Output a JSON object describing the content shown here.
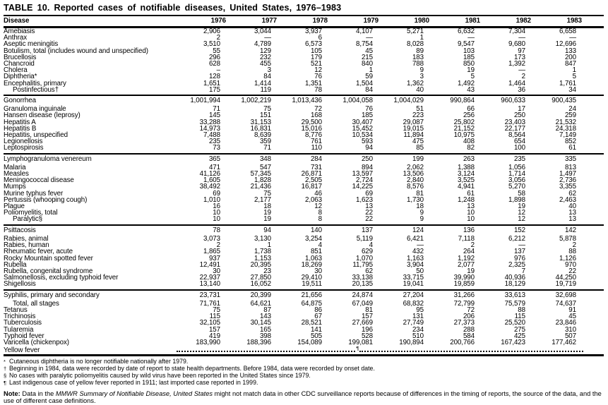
{
  "title": "TABLE 10. Reported cases of notifiable diseases, United States, 1976–1983",
  "colors": {
    "text": "#000000",
    "background": "#ffffff"
  },
  "table": {
    "columns": [
      "Disease",
      "1976",
      "1977",
      "1978",
      "1979",
      "1980",
      "1981",
      "1982",
      "1983"
    ],
    "sections": [
      {
        "rows": [
          {
            "disease": "Amebiasis",
            "values": [
              "2,906",
              "3,044",
              "3,937",
              "4,107",
              "5,271",
              "6,632",
              "7,304",
              "6,658"
            ]
          },
          {
            "disease": "Anthrax",
            "values": [
              "2",
              "—",
              "6",
              "—",
              "1",
              "—",
              "—",
              "—"
            ]
          },
          {
            "disease": "Aseptic meningitis",
            "values": [
              "3,510",
              "4,789",
              "6,573",
              "8,754",
              "8,028",
              "9,547",
              "9,680",
              "12,696"
            ]
          },
          {
            "disease": "Botulism, total (includes wound and unspecified)",
            "values": [
              "55",
              "129",
              "105",
              "45",
              "89",
              "103",
              "97",
              "133"
            ]
          },
          {
            "disease": "Brucellosis",
            "values": [
              "296",
              "232",
              "179",
              "215",
              "183",
              "185",
              "173",
              "200"
            ]
          },
          {
            "disease": "Chancroid",
            "values": [
              "628",
              "455",
              "521",
              "840",
              "788",
              "850",
              "1,392",
              "847"
            ]
          },
          {
            "disease": "Cholera",
            "values": [
              "–",
              "3",
              "12",
              "1",
              "9",
              "19",
              "—",
              "1"
            ]
          },
          {
            "disease": "Diphtheria*",
            "values": [
              "128",
              "84",
              "76",
              "59",
              "3",
              "5",
              "2",
              "5"
            ]
          },
          {
            "disease": "Encephalitis, primary",
            "values": [
              "1,651",
              "1,414",
              "1,351",
              "1,504",
              "1,362",
              "1,492",
              "1,464",
              "1,761"
            ]
          },
          {
            "disease": "Postinfectious†",
            "indent": true,
            "values": [
              "175",
              "119",
              "78",
              "84",
              "40",
              "43",
              "36",
              "34"
            ]
          }
        ]
      },
      {
        "rows": [
          {
            "disease": "Gonorrhea",
            "values": [
              "1,001,994",
              "1,002,219",
              "1,013,436",
              "1,004,058",
              "1,004,029",
              "990,864",
              "960,633",
              "900,435"
            ]
          },
          {
            "disease": "Granuloma inguinale",
            "values": [
              "71",
              "75",
              "72",
              "76",
              "51",
              "66",
              "17",
              "24"
            ]
          },
          {
            "disease": "Hansen disease (leprosy)",
            "values": [
              "145",
              "151",
              "168",
              "185",
              "223",
              "256",
              "250",
              "259"
            ]
          },
          {
            "disease": "Hepatitis A",
            "values": [
              "33,288",
              "31,153",
              "29,500",
              "30,407",
              "29,087",
              "25,802",
              "23,403",
              "21,532"
            ]
          },
          {
            "disease": "Hepatitis B",
            "values": [
              "14,973",
              "16,831",
              "15,016",
              "15,452",
              "19,015",
              "21,152",
              "22,177",
              "24,318"
            ]
          },
          {
            "disease": "Hepatitis, unspecified",
            "values": [
              "7,488",
              "8,639",
              "8,776",
              "10,534",
              "11,894",
              "10,975",
              "8,564",
              "7,149"
            ]
          },
          {
            "disease": "Legionellosis",
            "values": [
              "235",
              "359",
              "761",
              "593",
              "475",
              "408",
              "654",
              "852"
            ]
          },
          {
            "disease": "Leptospirosis",
            "values": [
              "73",
              "71",
              "110",
              "94",
              "85",
              "82",
              "100",
              "61"
            ]
          }
        ]
      },
      {
        "rows": [
          {
            "disease": "Lymphogranuloma venereum",
            "values": [
              "365",
              "348",
              "284",
              "250",
              "199",
              "263",
              "235",
              "335"
            ]
          },
          {
            "disease": "Malaria",
            "values": [
              "471",
              "547",
              "731",
              "894",
              "2,062",
              "1,388",
              "1,056",
              "813"
            ]
          },
          {
            "disease": "Measles",
            "values": [
              "41,126",
              "57,345",
              "26,871",
              "13,597",
              "13,506",
              "3,124",
              "1,714",
              "1,497"
            ]
          },
          {
            "disease": "Meningococcal disease",
            "values": [
              "1,605",
              "1,828",
              "2,505",
              "2,724",
              "2,840",
              "3,525",
              "3,056",
              "2,736"
            ]
          },
          {
            "disease": "Mumps",
            "values": [
              "38,492",
              "21,436",
              "16,817",
              "14,225",
              "8,576",
              "4,941",
              "5,270",
              "3,355"
            ]
          },
          {
            "disease": "Murine typhus fever",
            "values": [
              "69",
              "75",
              "46",
              "69",
              "81",
              "61",
              "58",
              "62"
            ]
          },
          {
            "disease": "Pertussis (whooping cough)",
            "values": [
              "1,010",
              "2,177",
              "2,063",
              "1,623",
              "1,730",
              "1,248",
              "1,898",
              "2,463"
            ]
          },
          {
            "disease": "Plague",
            "values": [
              "16",
              "18",
              "12",
              "13",
              "18",
              "13",
              "19",
              "40"
            ]
          },
          {
            "disease": "Poliomyelitis, total",
            "values": [
              "10",
              "19",
              "8",
              "22",
              "9",
              "10",
              "12",
              "13"
            ]
          },
          {
            "disease": "Paralytic§",
            "indent": true,
            "values": [
              "10",
              "19",
              "8",
              "22",
              "9",
              "10",
              "12",
              "13"
            ]
          }
        ]
      },
      {
        "rows": [
          {
            "disease": "Psittacosis",
            "values": [
              "78",
              "94",
              "140",
              "137",
              "124",
              "136",
              "152",
              "142"
            ]
          },
          {
            "disease": "Rabies, animal",
            "values": [
              "3,073",
              "3,130",
              "3,254",
              "5,119",
              "6,421",
              "7,118",
              "6,212",
              "5,878"
            ]
          },
          {
            "disease": "Rabies, human",
            "values": [
              "2",
              "1",
              "4",
              "4",
              "—",
              "2",
              "—",
              "2"
            ]
          },
          {
            "disease": "Rheumatic fever, acute",
            "values": [
              "1,865",
              "1,738",
              "851",
              "629",
              "432",
              "264",
              "137",
              "88"
            ]
          },
          {
            "disease": "Rocky Mountain spotted fever",
            "values": [
              "937",
              "1,153",
              "1,063",
              "1,070",
              "1,163",
              "1,192",
              "976",
              "1,126"
            ]
          },
          {
            "disease": "Rubella",
            "values": [
              "12,491",
              "20,395",
              "18,269",
              "11,795",
              "3,904",
              "2,077",
              "2,325",
              "970"
            ]
          },
          {
            "disease": "Rubella, congenital syndrome",
            "values": [
              "30",
              "23",
              "30",
              "62",
              "50",
              "19",
              "7",
              "22"
            ]
          },
          {
            "disease": "Salmonellosis, excluding typhoid fever",
            "values": [
              "22,937",
              "27,850",
              "29,410",
              "33,138",
              "33,715",
              "39,990",
              "40,936",
              "44,250"
            ]
          },
          {
            "disease": "Shigellosis",
            "values": [
              "13,140",
              "16,052",
              "19,511",
              "20,135",
              "19,041",
              "19,859",
              "18,129",
              "19,719"
            ]
          }
        ]
      },
      {
        "rows": [
          {
            "disease": "Syphilis, primary and secondary",
            "values": [
              "23,731",
              "20,399",
              "21,656",
              "24,874",
              "27,204",
              "31,266",
              "33,613",
              "32,698"
            ]
          },
          {
            "disease": "Total, all stages",
            "indent": true,
            "values": [
              "71,761",
              "64,621",
              "64,875",
              "67,049",
              "68,832",
              "72,799",
              "75,579",
              "74,637"
            ]
          },
          {
            "disease": "Tetanus",
            "values": [
              "75",
              "87",
              "86",
              "81",
              "95",
              "72",
              "88",
              "91"
            ]
          },
          {
            "disease": "Trichinosis",
            "values": [
              "115",
              "143",
              "67",
              "157",
              "131",
              "206",
              "115",
              "45"
            ]
          },
          {
            "disease": "Tuberculosis",
            "values": [
              "32,105",
              "30,145",
              "28,521",
              "27,669",
              "27,749",
              "27,373",
              "25,520",
              "23,846"
            ]
          },
          {
            "disease": "Tularemia",
            "values": [
              "157",
              "165",
              "141",
              "196",
              "234",
              "288",
              "275",
              "310"
            ]
          },
          {
            "disease": "Typhoid fever",
            "values": [
              "419",
              "398",
              "505",
              "528",
              "510",
              "584",
              "425",
              "507"
            ]
          },
          {
            "disease": "Varicella (chickenpox)",
            "values": [
              "183,990",
              "188,396",
              "154,089",
              "199,081",
              "190,894",
              "200,766",
              "167,423",
              "177,462"
            ]
          },
          {
            "disease": "Yellow fever",
            "dotted": true,
            "mark": "¶"
          }
        ]
      }
    ]
  },
  "footnotes": [
    {
      "symbol": "*",
      "text": "Cutaneous diphtheria is no longer notifiable nationally after 1979."
    },
    {
      "symbol": "†",
      "text": "Beginning in 1984, data were recorded by date of report to state health departments. Before 1984, data were recorded by onset date."
    },
    {
      "symbol": "§",
      "text": "No cases with paralytic poliomyelitis caused by wild virus have been reported in the United States since 1979."
    },
    {
      "symbol": "¶",
      "text": "Last indigenous case of yellow fever reported in 1911; last imported case reported in 1999."
    }
  ],
  "note": {
    "label": "Note:",
    "pre": " Data in the ",
    "italic": "MMWR Summary of Notifiable Disease, United States",
    "post": " might not match data in other CDC surveillance reports because of differences in the timing of reports, the source of the data, and the use of different case definitions."
  }
}
